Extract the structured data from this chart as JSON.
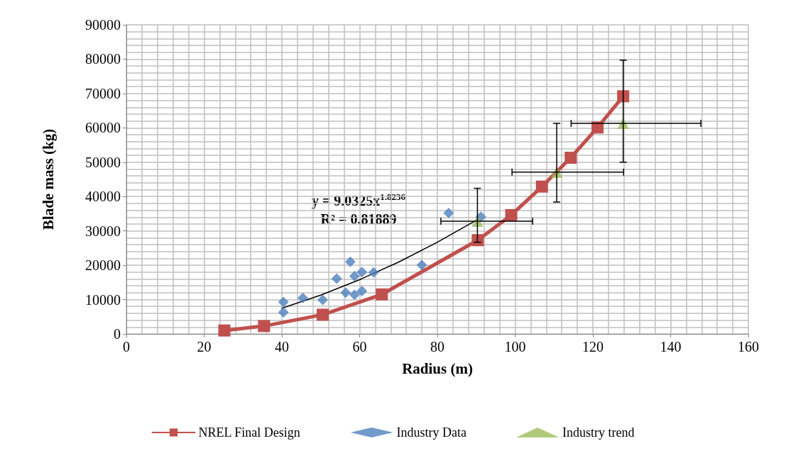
{
  "chart_data": {
    "type": "scatter",
    "xlabel": "Radius (m)",
    "ylabel": "Blade mass (kg)",
    "xlim": [
      0,
      160
    ],
    "xticks": [
      0,
      20,
      40,
      60,
      80,
      100,
      120,
      140,
      160
    ],
    "ylim": [
      0,
      90000
    ],
    "yticks": [
      0,
      10000,
      20000,
      30000,
      40000,
      50000,
      60000,
      70000,
      80000,
      90000
    ],
    "grid": true,
    "legend": "bottom",
    "annotations": [
      "y = 9.0325x$^{1.8236}$",
      "R² = 0.81889"
    ],
    "series": [
      {
        "name": "NREL Final Design",
        "type": "line",
        "color": "#c0504d",
        "marker": "square",
        "line_style": "solid",
        "x": [
          25.2,
          35.4,
          50.5,
          65.7,
          90.4,
          99,
          106.9,
          114.3,
          121.2,
          127.8
        ],
        "values": [
          1000,
          2300,
          5600,
          11500,
          27300,
          34600,
          42900,
          51300,
          60100,
          69200
        ]
      },
      {
        "name": "Industry Data",
        "type": "scatter",
        "color": "#4f81bd",
        "marker": "diamond",
        "x": [
          40.4,
          40.4,
          45.4,
          50.5,
          54.1,
          57.6,
          56.4,
          58.7,
          60.6,
          58.7,
          60.6,
          63.6,
          76,
          82.9,
          91.2
        ],
        "values": [
          9300,
          6300,
          10500,
          9900,
          16100,
          21000,
          12000,
          16800,
          18000,
          11400,
          12500,
          17900,
          20100,
          35200,
          34100
        ]
      },
      {
        "name": "Industry trend",
        "type": "scatter",
        "color": "#9bbb59",
        "marker": "triangle",
        "x": [
          90.3,
          110.7,
          127.8
        ],
        "values": [
          32800,
          47100,
          61300
        ],
        "errors": [
          [
            26700,
            42400
          ],
          [
            38400,
            61300
          ],
          [
            50000,
            79700
          ]
        ],
        "xerrors": [
          [
            80.9,
            104.5
          ],
          [
            99.2,
            127.9
          ],
          [
            114.4,
            147.8
          ]
        ]
      },
      {
        "type": "line",
        "color": "#000000",
        "marker": "none",
        "line_style": "solid",
        "x": [
          40,
          50,
          60,
          70,
          80,
          90
        ],
        "values": [
          7500,
          11300,
          15800,
          20900,
          26700,
          33100
        ]
      }
    ]
  }
}
